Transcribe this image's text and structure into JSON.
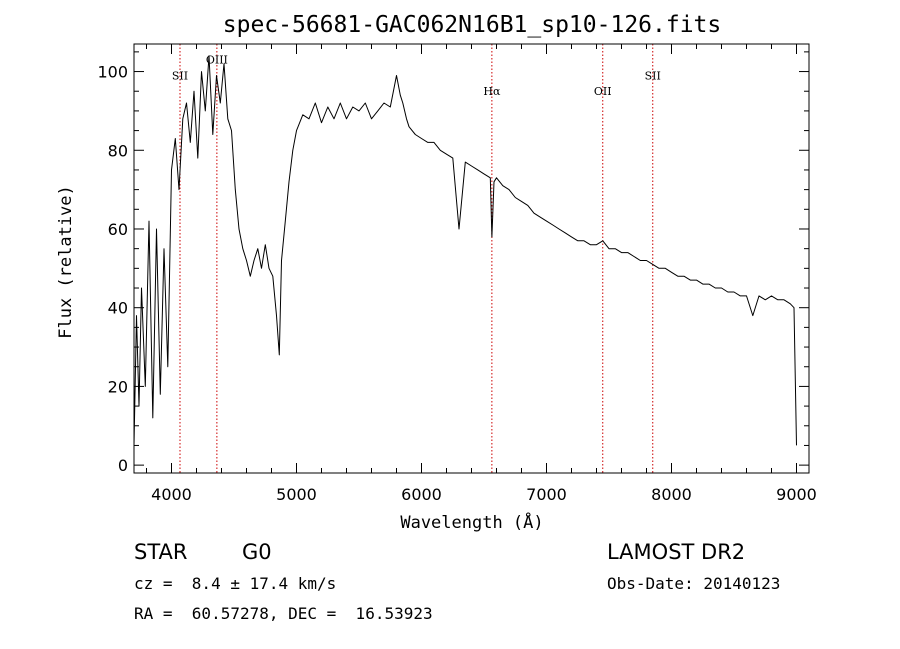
{
  "chart_data": {
    "type": "line",
    "title": "spec-56681-GAC062N16B1_sp10-126.fits",
    "xlabel": "Wavelength (Å)",
    "ylabel": "Flux (relative)",
    "xlim": [
      3700,
      9100
    ],
    "ylim": [
      -2,
      107
    ],
    "xticks": [
      4000,
      5000,
      6000,
      7000,
      8000,
      9000
    ],
    "yticks": [
      0,
      20,
      40,
      60,
      80,
      100
    ],
    "grid": false,
    "series": [
      {
        "x": [
          3700,
          3720,
          3740,
          3760,
          3790,
          3820,
          3850,
          3880,
          3910,
          3940,
          3970,
          4000,
          4030,
          4060,
          4090,
          4120,
          4150,
          4180,
          4210,
          4240,
          4270,
          4300,
          4330,
          4360,
          4390,
          4420,
          4450,
          4480,
          4510,
          4540,
          4570,
          4600,
          4630,
          4660,
          4690,
          4720,
          4750,
          4780,
          4810,
          4840,
          4862,
          4880,
          4910,
          4940,
          4970,
          5000,
          5050,
          5100,
          5150,
          5200,
          5250,
          5300,
          5350,
          5400,
          5450,
          5500,
          5550,
          5600,
          5650,
          5700,
          5750,
          5800,
          5830,
          5850,
          5880,
          5900,
          5950,
          6000,
          6050,
          6100,
          6150,
          6200,
          6250,
          6300,
          6350,
          6400,
          6450,
          6500,
          6550,
          6563,
          6580,
          6600,
          6650,
          6700,
          6750,
          6800,
          6850,
          6900,
          6950,
          7000,
          7050,
          7100,
          7150,
          7200,
          7250,
          7300,
          7350,
          7400,
          7450,
          7500,
          7550,
          7600,
          7650,
          7700,
          7750,
          7800,
          7850,
          7900,
          7950,
          8000,
          8050,
          8100,
          8150,
          8200,
          8250,
          8300,
          8350,
          8400,
          8450,
          8500,
          8550,
          8600,
          8650,
          8700,
          8750,
          8800,
          8850,
          8900,
          8950,
          8980,
          9000
        ],
        "y": [
          5,
          38,
          15,
          45,
          20,
          62,
          12,
          60,
          18,
          55,
          25,
          75,
          83,
          70,
          88,
          92,
          82,
          95,
          78,
          100,
          90,
          104,
          84,
          99,
          92,
          102,
          88,
          85,
          70,
          60,
          55,
          52,
          48,
          52,
          55,
          50,
          56,
          50,
          48,
          38,
          28,
          52,
          62,
          72,
          80,
          85,
          89,
          88,
          92,
          87,
          91,
          88,
          92,
          88,
          91,
          90,
          92,
          88,
          90,
          92,
          91,
          99,
          94,
          92,
          88,
          86,
          84,
          83,
          82,
          82,
          80,
          79,
          78,
          60,
          77,
          76,
          75,
          74,
          73,
          58,
          72,
          73,
          71,
          70,
          68,
          67,
          66,
          64,
          63,
          62,
          61,
          60,
          59,
          58,
          57,
          57,
          56,
          56,
          57,
          55,
          55,
          54,
          54,
          53,
          52,
          52,
          51,
          50,
          50,
          49,
          48,
          48,
          47,
          47,
          46,
          46,
          45,
          45,
          44,
          44,
          43,
          43,
          38,
          43,
          42,
          43,
          42,
          42,
          41,
          40,
          5
        ]
      }
    ],
    "emission_lines": [
      {
        "label": "SII",
        "x": 4068,
        "label_y": 98
      },
      {
        "label": "OIII",
        "x": 4363,
        "label_y": 102
      },
      {
        "label": "Hα",
        "x": 6563,
        "label_y": 94
      },
      {
        "label": "OII",
        "x": 7450,
        "label_y": 94
      },
      {
        "label": "SII",
        "x": 7850,
        "label_y": 98
      }
    ],
    "line_color": "#000000",
    "marker_color": "#cc0000"
  },
  "info": {
    "object_class": "STAR",
    "subclass": "G0",
    "survey": "LAMOST DR2",
    "redshift_text": "cz =  8.4 ± 17.4 km/s",
    "obs_date_text": "Obs-Date: 20140123",
    "coords_text": "RA =  60.57278, DEC =  16.53923"
  }
}
